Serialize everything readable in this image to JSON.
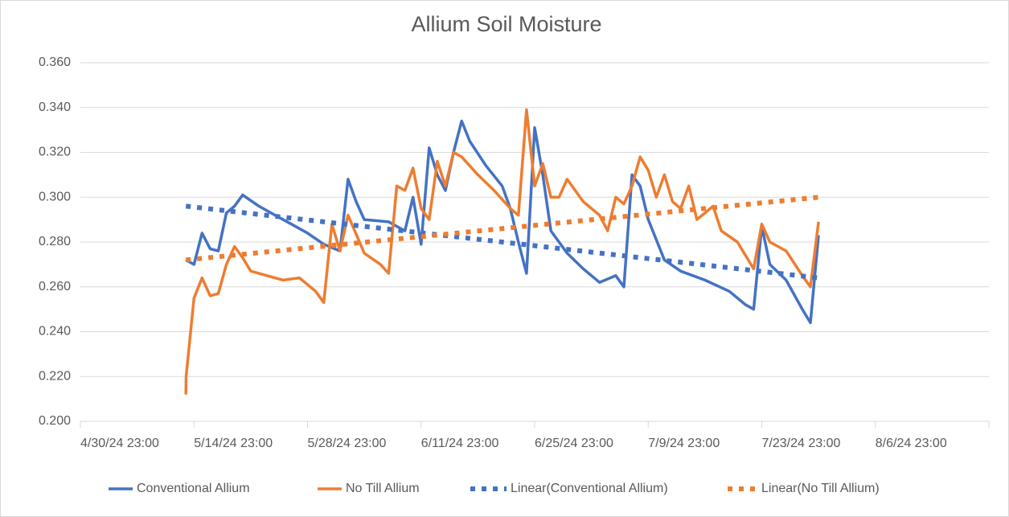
{
  "chart_data": {
    "type": "line",
    "title": "Allium Soil Moisture",
    "xlim": [
      {
        "value": "2024-04-30T23:00Z",
        "label": "4/30/24 23:00"
      },
      "2024-08-20T23:00Z"
    ],
    "xticks": [
      {
        "value": "2024-04-30T23:00Z",
        "label": "4/30/24 23:00"
      },
      {
        "value": "2024-05-14T23:00Z",
        "label": "5/14/24 23:00"
      },
      {
        "value": "2024-05-28T23:00Z",
        "label": "5/28/24 23:00"
      },
      {
        "value": "2024-06-11T23:00Z",
        "label": "6/11/24 23:00"
      },
      {
        "value": "2024-06-25T23:00Z",
        "label": "6/25/24 23:00"
      },
      {
        "value": "2024-07-09T23:00Z",
        "label": "7/9/24 23:00"
      },
      {
        "value": "2024-07-23T23:00Z",
        "label": "7/23/24 23:00"
      },
      {
        "value": "2024-08-06T23:00Z",
        "label": "8/6/24 23:00"
      }
    ],
    "ylim": [
      0.2,
      0.36
    ],
    "yticks": [
      {
        "value": 0.2,
        "label": "0.200"
      },
      {
        "value": 0.22,
        "label": "0.220"
      },
      {
        "value": 0.24,
        "label": "0.240"
      },
      {
        "value": 0.26,
        "label": "0.260"
      },
      {
        "value": 0.28,
        "label": "0.280"
      },
      {
        "value": 0.3,
        "label": "0.300"
      },
      {
        "value": 0.32,
        "label": "0.320"
      },
      {
        "value": 0.34,
        "label": "0.340"
      },
      {
        "value": 0.36,
        "label": "0.360"
      }
    ],
    "grid": true,
    "legend": "bottom",
    "series": [
      {
        "name": "Conventional Allium",
        "color": "#4472c4",
        "style": "solid",
        "x": [
          "2024-05-13T23:00Z",
          "2024-05-14T23:00Z",
          "2024-05-15T23:00Z",
          "2024-05-16T23:00Z",
          "2024-05-17T23:00Z",
          "2024-05-18T23:00Z",
          "2024-05-19T23:00Z",
          "2024-05-20T23:00Z",
          "2024-05-22T23:00Z",
          "2024-05-24T23:00Z",
          "2024-05-26T23:00Z",
          "2024-05-28T23:00Z",
          "2024-05-30T23:00Z",
          "2024-06-01T23:00Z",
          "2024-06-02T23:00Z",
          "2024-06-03T23:00Z",
          "2024-06-04T23:00Z",
          "2024-06-07T23:00Z",
          "2024-06-09T23:00Z",
          "2024-06-10T23:00Z",
          "2024-06-11T23:00Z",
          "2024-06-12T23:00Z",
          "2024-06-13T23:00Z",
          "2024-06-14T23:00Z",
          "2024-06-15T23:00Z",
          "2024-06-16T23:00Z",
          "2024-06-17T23:00Z",
          "2024-06-19T23:00Z",
          "2024-06-21T23:00Z",
          "2024-06-22T23:00Z",
          "2024-06-23T23:00Z",
          "2024-06-24T23:00Z",
          "2024-06-25T23:00Z",
          "2024-06-26T23:00Z",
          "2024-06-27T23:00Z",
          "2024-06-29T23:00Z",
          "2024-07-01T23:00Z",
          "2024-07-03T23:00Z",
          "2024-07-05T23:00Z",
          "2024-07-06T23:00Z",
          "2024-07-07T23:00Z",
          "2024-07-08T23:00Z",
          "2024-07-09T23:00Z",
          "2024-07-11T23:00Z",
          "2024-07-13T23:00Z",
          "2024-07-16T23:00Z",
          "2024-07-19T23:00Z",
          "2024-07-21T23:00Z",
          "2024-07-22T23:00Z",
          "2024-07-23T23:00Z",
          "2024-07-24T23:00Z",
          "2024-07-26T23:00Z",
          "2024-07-28T23:00Z",
          "2024-07-29T23:00Z",
          "2024-07-30T23:00Z"
        ],
        "values": [
          0.272,
          0.27,
          0.284,
          0.277,
          0.276,
          0.293,
          0.296,
          0.301,
          0.296,
          0.292,
          0.288,
          0.284,
          0.279,
          0.276,
          0.308,
          0.298,
          0.29,
          0.289,
          0.285,
          0.3,
          0.279,
          0.322,
          0.31,
          0.303,
          0.32,
          0.334,
          0.325,
          0.314,
          0.305,
          0.295,
          0.28,
          0.266,
          0.331,
          0.31,
          0.285,
          0.275,
          0.268,
          0.262,
          0.265,
          0.26,
          0.31,
          0.305,
          0.29,
          0.272,
          0.267,
          0.263,
          0.258,
          0.252,
          0.25,
          0.287,
          0.27,
          0.263,
          0.25,
          0.244,
          0.283
        ]
      },
      {
        "name": "No Till Allium",
        "color": "#ed7d31",
        "style": "solid",
        "x": [
          "2024-05-13T23:00Z",
          "2024-05-13T23:50Z",
          "2024-05-14T23:00Z",
          "2024-05-15T23:00Z",
          "2024-05-16T23:00Z",
          "2024-05-17T23:00Z",
          "2024-05-18T23:00Z",
          "2024-05-19T23:00Z",
          "2024-05-20T23:00Z",
          "2024-05-21T23:00Z",
          "2024-05-23T23:00Z",
          "2024-05-25T23:00Z",
          "2024-05-27T23:00Z",
          "2024-05-29T23:00Z",
          "2024-05-30T23:00Z",
          "2024-05-31T23:00Z",
          "2024-06-01T23:00Z",
          "2024-06-02T23:00Z",
          "2024-06-04T23:00Z",
          "2024-06-06T23:00Z",
          "2024-06-07T23:00Z",
          "2024-06-08T23:00Z",
          "2024-06-09T23:00Z",
          "2024-06-10T23:00Z",
          "2024-06-11T23:00Z",
          "2024-06-12T23:00Z",
          "2024-06-13T23:00Z",
          "2024-06-14T23:00Z",
          "2024-06-15T23:00Z",
          "2024-06-16T23:00Z",
          "2024-06-18T23:00Z",
          "2024-06-20T23:00Z",
          "2024-06-22T23:00Z",
          "2024-06-23T23:00Z",
          "2024-06-24T23:00Z",
          "2024-06-25T23:00Z",
          "2024-06-26T23:00Z",
          "2024-06-27T23:00Z",
          "2024-06-28T23:00Z",
          "2024-06-29T23:00Z",
          "2024-07-01T23:00Z",
          "2024-07-03T23:00Z",
          "2024-07-04T23:00Z",
          "2024-07-05T23:00Z",
          "2024-07-06T23:00Z",
          "2024-07-07T23:00Z",
          "2024-07-08T23:00Z",
          "2024-07-09T23:00Z",
          "2024-07-10T23:00Z",
          "2024-07-11T23:00Z",
          "2024-07-12T23:00Z",
          "2024-07-13T23:00Z",
          "2024-07-14T23:00Z",
          "2024-07-15T23:00Z",
          "2024-07-17T23:00Z",
          "2024-07-18T23:00Z",
          "2024-07-20T23:00Z",
          "2024-07-22T23:00Z",
          "2024-07-23T23:00Z",
          "2024-07-24T23:00Z",
          "2024-07-26T23:00Z",
          "2024-07-28T23:00Z",
          "2024-07-29T23:00Z",
          "2024-07-30T23:00Z"
        ],
        "values": [
          0.212,
          0.22,
          0.255,
          0.264,
          0.256,
          0.257,
          0.27,
          0.278,
          0.273,
          0.267,
          0.265,
          0.263,
          0.264,
          0.258,
          0.253,
          0.288,
          0.276,
          0.292,
          0.275,
          0.27,
          0.266,
          0.305,
          0.303,
          0.313,
          0.295,
          0.29,
          0.316,
          0.305,
          0.32,
          0.318,
          0.31,
          0.303,
          0.295,
          0.292,
          0.339,
          0.305,
          0.315,
          0.3,
          0.3,
          0.308,
          0.298,
          0.292,
          0.285,
          0.3,
          0.297,
          0.305,
          0.318,
          0.312,
          0.3,
          0.31,
          0.298,
          0.295,
          0.305,
          0.29,
          0.296,
          0.285,
          0.28,
          0.268,
          0.288,
          0.28,
          0.276,
          0.265,
          0.26,
          0.289
        ]
      },
      {
        "name": "Linear(Conventional Allium)",
        "color": "#4472c4",
        "style": "dotted",
        "x": [
          "2024-05-13T23:00Z",
          "2024-07-30T23:00Z"
        ],
        "values": [
          0.296,
          0.264
        ]
      },
      {
        "name": "Linear(No Till Allium)",
        "color": "#ed7d31",
        "style": "dotted",
        "x": [
          "2024-05-13T23:00Z",
          "2024-07-30T23:00Z"
        ],
        "values": [
          0.272,
          0.3
        ]
      }
    ]
  }
}
